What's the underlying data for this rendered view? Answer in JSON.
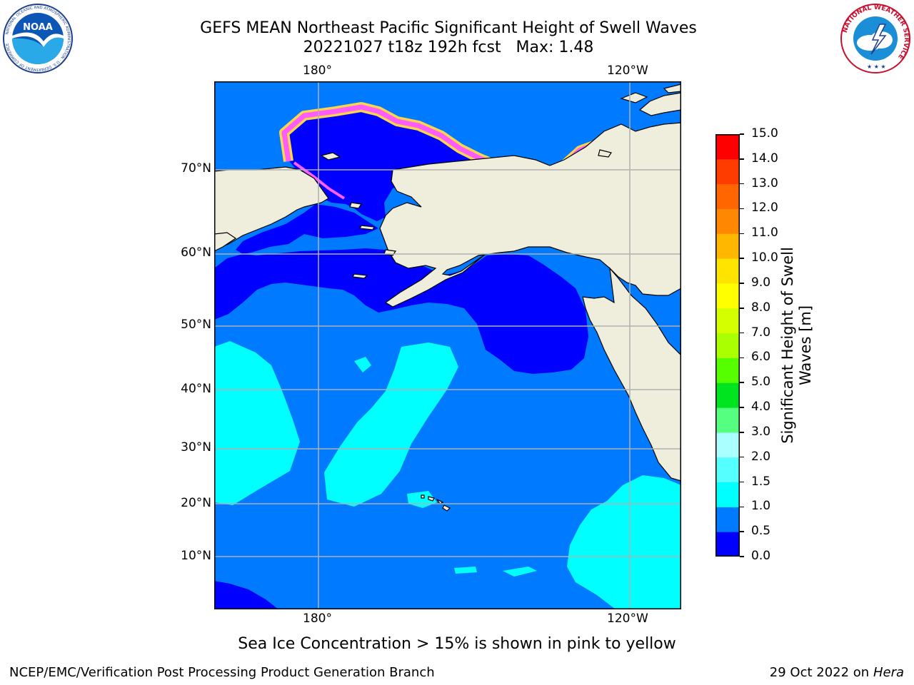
{
  "header": {
    "title_line1": "GEFS MEAN Northeast Pacific Significant Height of Swell Waves",
    "title_line2": "20221027 t18z 192h fcst   Max: 1.48"
  },
  "logos": {
    "left": {
      "text": "NOAA",
      "ring_text": "NATIONAL OCEANIC AND ATMOSPHERIC ADMINISTRATION · U.S. DEPARTMENT OF COMMERCE"
    },
    "right": {
      "ring_text": "NATIONAL WEATHER SERVICE"
    }
  },
  "map": {
    "lon_labels": [
      "180°",
      "120°W"
    ],
    "lat_labels": [
      "70°N",
      "60°N",
      "50°N",
      "40°N",
      "30°N",
      "20°N",
      "10°N"
    ],
    "colors": {
      "land": "#efeedc",
      "ocean_low": "#0000ff",
      "ocean_mid": "#007bff",
      "ocean_high": "#00ffff",
      "grid": "#b0b0b0",
      "ice_pink": "#ff5cff",
      "ice_yellow": "#ffd54a"
    }
  },
  "colorbar": {
    "title": "Significant Height of Swell\nWaves [m]",
    "ticks": [
      "15.0",
      "14.0",
      "13.0",
      "12.0",
      "11.0",
      "10.0",
      "9.0",
      "8.0",
      "7.0",
      "6.0",
      "5.0",
      "4.0",
      "3.0",
      "2.0",
      "1.5",
      "1.0",
      "0.5",
      "0.0"
    ],
    "colors": [
      "#0000ff",
      "#007bff",
      "#00ffff",
      "#55ffff",
      "#aaffff",
      "#55ff7f",
      "#00e41f",
      "#55ff00",
      "#aaff00",
      "#d4ff00",
      "#ffff00",
      "#ffe400",
      "#ffb700",
      "#ff8800",
      "#ff6600",
      "#ff3c00",
      "#ff0000"
    ]
  },
  "notes": {
    "ice": "Sea Ice Concentration > 15% is shown in pink to yellow"
  },
  "footer": {
    "left": "NCEP/EMC/Verification Post Processing Product Generation Branch",
    "right_prefix": "29 Oct 2022 on",
    "right_host": "Hera"
  }
}
